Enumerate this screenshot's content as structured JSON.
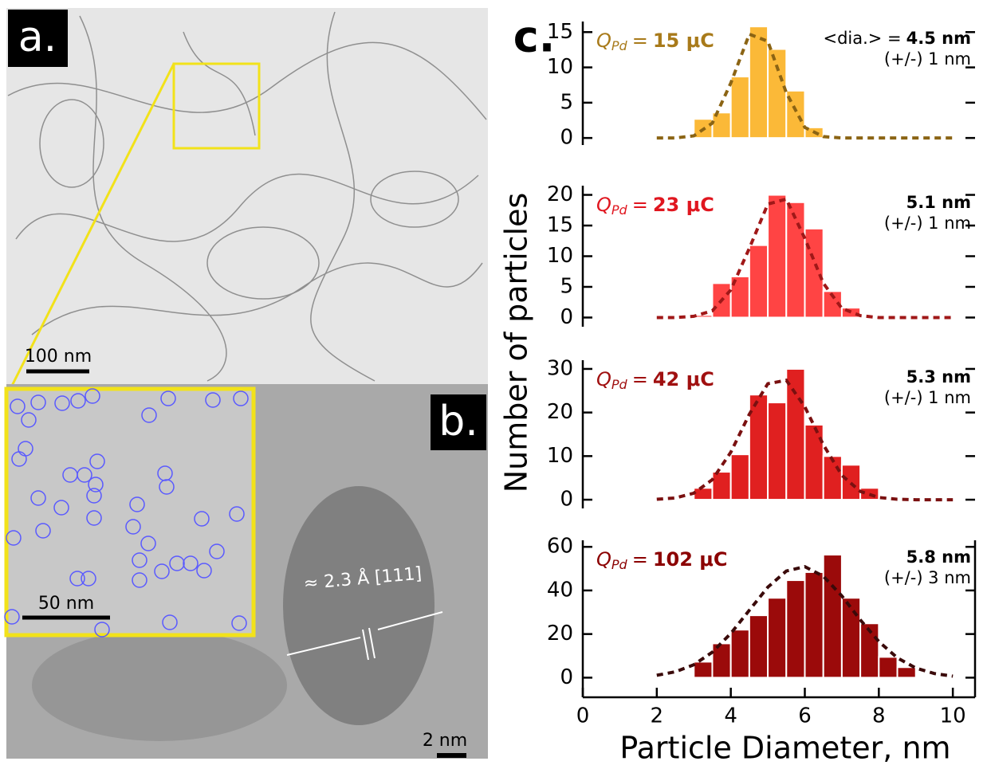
{
  "figure": {
    "panel_a": "a.",
    "panel_b": "b.",
    "panel_c": "c.",
    "scale_a": "100 nm",
    "scale_inset": "50 nm",
    "scale_b": "2 nm",
    "lattice": "≈ 2.3 Å [111]",
    "ylabel": "Number of particles"
  },
  "chart_data": [
    {
      "type": "histogram",
      "color": "#fbb938",
      "label_color": "#a87a1a",
      "annotation": {
        "symbol": "Q",
        "subscript": "Pd",
        "relation": "=",
        "value": "15 μC"
      },
      "mean_prefix": "<dia.> =",
      "mean": "4.5 nm",
      "spread": "(+/-) 1 nm",
      "bins": [
        3,
        3.5,
        4,
        4.5,
        5,
        5.5,
        6,
        6.5
      ],
      "values": [
        2.7,
        3.6,
        8.7,
        15.8,
        12.6,
        6.7,
        1.5
      ],
      "fit": {
        "color": "#8b6414",
        "x": [
          2,
          2.5,
          3,
          3.5,
          4,
          4.5,
          5,
          5.5,
          6,
          6.5,
          7,
          7.5,
          8,
          8.5,
          9,
          9.5,
          10
        ],
        "values": [
          0,
          0,
          0.3,
          2.1,
          7.8,
          14.7,
          13.7,
          6.4,
          1.5,
          0.2,
          0,
          0,
          0,
          0,
          0,
          0,
          0
        ]
      },
      "xlim": [
        0,
        10.6
      ],
      "ylim": [
        -1,
        16.5
      ],
      "yticks": [
        0,
        5,
        10,
        15
      ]
    },
    {
      "type": "histogram",
      "color": "#ff4444",
      "label_color": "#e0161f",
      "annotation": {
        "symbol": "Q",
        "subscript": "Pd",
        "relation": "=",
        "value": "23 μC"
      },
      "mean": "5.1 nm",
      "spread": "(+/-) 1 nm",
      "bins": [
        3,
        3.5,
        4,
        4.5,
        5,
        5.5,
        6,
        6.5,
        7,
        7.5
      ],
      "values": [
        0.4,
        5.6,
        6.7,
        11.8,
        20,
        18.8,
        14.5,
        4.3,
        1.6
      ],
      "fit": {
        "color": "#a01818",
        "x": [
          2,
          2.5,
          3,
          3.5,
          4,
          4.5,
          5,
          5.5,
          6,
          6.5,
          7,
          7.5,
          8,
          8.5,
          9,
          9.5,
          10
        ],
        "values": [
          0,
          0,
          0.2,
          1.1,
          4.5,
          11.3,
          18.5,
          19.3,
          12.9,
          5.6,
          1.5,
          0.3,
          0,
          0,
          0,
          0,
          0
        ]
      },
      "xlim": [
        0,
        10.6
      ],
      "ylim": [
        -1.5,
        21.5
      ],
      "yticks": [
        0,
        5,
        10,
        15,
        20
      ]
    },
    {
      "type": "histogram",
      "color": "#e02020",
      "label_color": "#a01010",
      "annotation": {
        "symbol": "Q",
        "subscript": "Pd",
        "relation": "=",
        "value": "42 μC"
      },
      "mean": "5.3 nm",
      "spread": "(+/-) 1 nm",
      "bins": [
        3,
        3.5,
        4,
        4.5,
        5,
        5.5,
        6,
        6.5,
        7,
        7.5,
        8
      ],
      "values": [
        2.7,
        6.4,
        10.4,
        24.1,
        22.3,
        30,
        17.2,
        10,
        8,
        2.7
      ],
      "fit": {
        "color": "#7a1010",
        "x": [
          2,
          2.5,
          3,
          3.5,
          4,
          4.5,
          5,
          5.5,
          6,
          6.5,
          7,
          7.5,
          8,
          8.5,
          9,
          9.5,
          10
        ],
        "values": [
          0.1,
          0.4,
          1.5,
          4.6,
          10.9,
          19.6,
          26.6,
          27.4,
          21.3,
          12.6,
          5.6,
          1.9,
          0.5,
          0.1,
          0,
          0,
          0
        ]
      },
      "xlim": [
        0,
        10.6
      ],
      "ylim": [
        -2,
        32
      ],
      "yticks": [
        0,
        10,
        20,
        30
      ]
    },
    {
      "type": "histogram",
      "color": "#9b0a0a",
      "label_color": "#8b0000",
      "annotation": {
        "symbol": "Q",
        "subscript": "Pd",
        "relation": "=",
        "value": "102 μC"
      },
      "mean": "5.8 nm",
      "spread": "(+/-) 3 nm",
      "bins": [
        3,
        3.5,
        4,
        4.5,
        5,
        5.5,
        6,
        6.5,
        7,
        7.5,
        8,
        8.5,
        9
      ],
      "values": [
        7.3,
        15.7,
        22,
        28.6,
        36.6,
        44.7,
        48.4,
        56.4,
        36.6,
        24.9,
        9.5,
        4.8
      ],
      "fit": {
        "color": "#3a0a0a",
        "x": [
          2,
          2.5,
          3,
          3.5,
          4,
          4.5,
          5,
          5.5,
          6,
          6.5,
          7,
          7.5,
          8,
          8.5,
          9,
          9.5,
          10
        ],
        "values": [
          1.1,
          2.7,
          5.9,
          11.7,
          20.3,
          30.9,
          41.5,
          48.9,
          50.9,
          46.5,
          37.5,
          26.5,
          16.6,
          9.1,
          4.4,
          1.9,
          0.7
        ]
      },
      "xlim": [
        0,
        10.6
      ],
      "ylim": [
        -9,
        63
      ],
      "yticks": [
        0,
        20,
        40,
        60
      ],
      "xticks": [
        0,
        2,
        4,
        6,
        8,
        10
      ],
      "xlabel": "Particle Diameter, nm"
    }
  ]
}
